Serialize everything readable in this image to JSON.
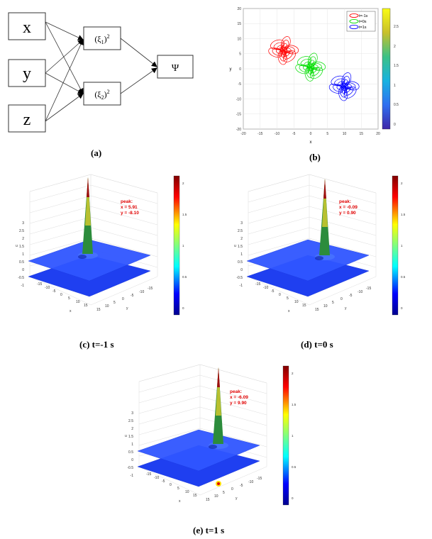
{
  "panel_a": {
    "inputs": [
      "x",
      "y",
      "z"
    ],
    "hidden": [
      {
        "base": "(ξ",
        "sub": "1",
        "close": ")",
        "sup": "2"
      },
      {
        "base": "(ξ",
        "sub": "2",
        "close": ")",
        "sup": "2"
      }
    ],
    "output": "Ψ",
    "caption": "(a)"
  },
  "panel_b": {
    "caption": "(b)",
    "colorbar_ticks": [
      "2.5",
      "2",
      "1.5",
      "1",
      "0.5",
      "0"
    ],
    "colors": {
      "red": "#ff0000",
      "green": "#00dd00",
      "blue": "#0000ff"
    }
  },
  "panel_c": {
    "peak_label": "peak:",
    "peak_x": "x = 5.91",
    "peak_y": "y = -8.10",
    "caption": "(c) t=-1 s"
  },
  "panel_d": {
    "peak_label": "peak:",
    "peak_x": "x = -0.09",
    "peak_y": "y = 0.90",
    "caption": "(d) t=0 s"
  },
  "panel_e": {
    "peak_label": "peak:",
    "peak_x": "x = -6.09",
    "peak_y": "y = 9.90",
    "caption": "(e) t=1 s"
  },
  "surface_axes": {
    "z_ticks": [
      "3",
      "2.5",
      "2",
      "1.5",
      "1",
      "0.5",
      "0",
      "-0.5",
      "-1"
    ],
    "x_ticks": [
      "-15",
      "-10",
      "-5",
      "0",
      "5",
      "10",
      "15"
    ],
    "y_ticks": [
      "-15",
      "-10",
      "-5",
      "0",
      "5",
      "10",
      "15"
    ],
    "colorbar_ticks": [
      "2",
      "1.5",
      "1",
      "0.5",
      "0"
    ],
    "xlabel": "x",
    "ylabel": "y",
    "zlabel": "u"
  },
  "chart_data": {
    "type": "line",
    "title": "",
    "xlabel": "x",
    "ylabel": "y",
    "xlim": [
      -20,
      20
    ],
    "ylim": [
      -20,
      20
    ],
    "x_ticks": [
      -20,
      -15,
      -10,
      -5,
      0,
      5,
      10,
      15,
      20
    ],
    "y_ticks": [
      -20,
      -15,
      -10,
      -5,
      0,
      5,
      10,
      15,
      20
    ],
    "grid": true,
    "legend_position": "top-right",
    "series": [
      {
        "name": "t=-1s",
        "color": "#ff0000",
        "center": [
          -8,
          6
        ]
      },
      {
        "name": "t=0s",
        "color": "#00dd00",
        "center": [
          0,
          0.5
        ]
      },
      {
        "name": "t=1s",
        "color": "#0000ff",
        "center": [
          10,
          -6
        ]
      }
    ],
    "colorbar_range": [
      0,
      3
    ]
  }
}
